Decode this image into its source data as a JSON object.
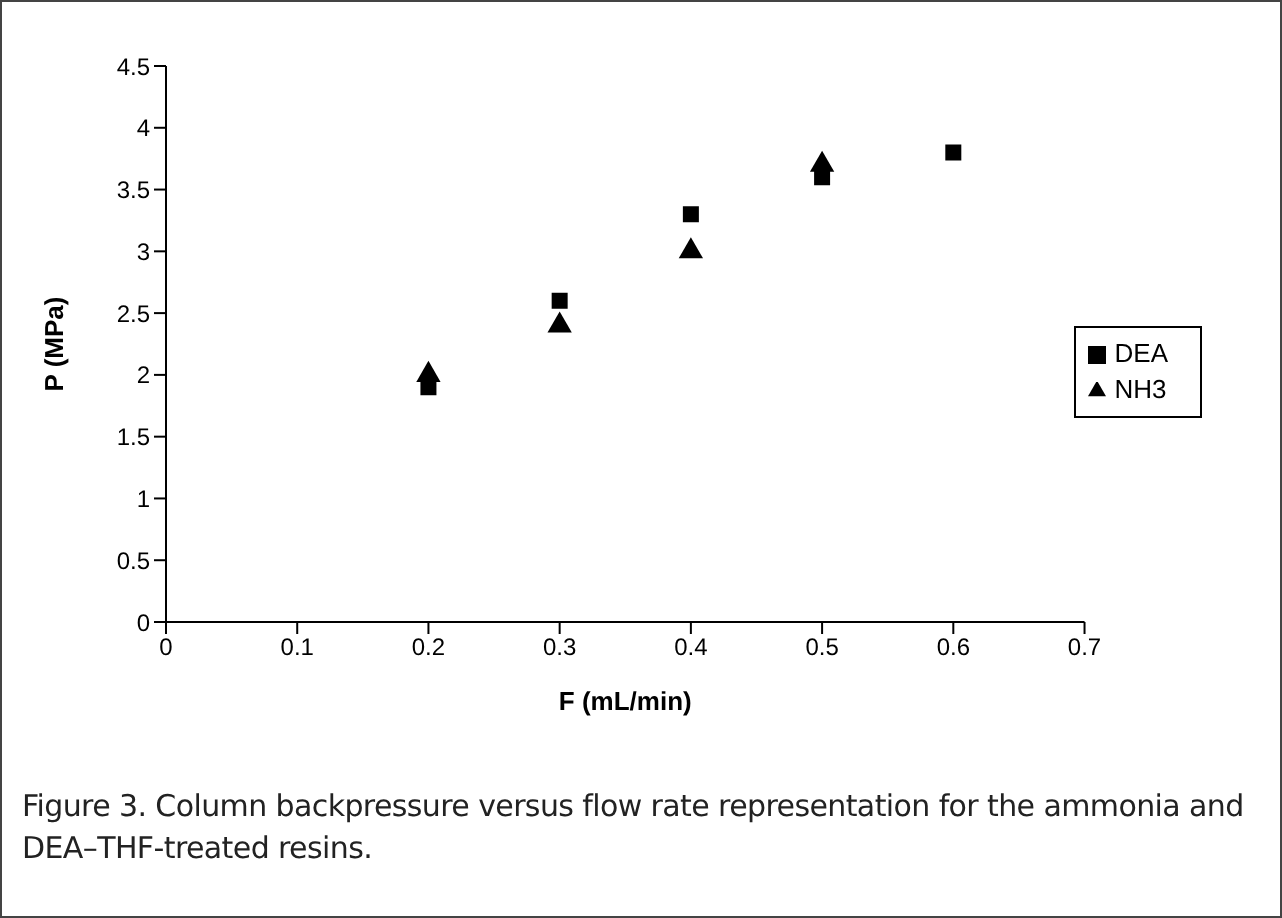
{
  "chart_data": {
    "type": "scatter",
    "xlabel": "F (mL/min)",
    "ylabel": "P (MPa)",
    "xlim": [
      0,
      0.7
    ],
    "xticks": [
      0,
      0.1,
      0.2,
      0.3,
      0.4,
      0.5,
      0.6,
      0.7
    ],
    "ylim": [
      0,
      4.5
    ],
    "yticks": [
      0,
      0.5,
      1,
      1.5,
      2,
      2.5,
      3,
      3.5,
      4,
      4.5
    ],
    "grid": false,
    "legend": "right",
    "series": [
      {
        "name": "NH3",
        "color": "#000000",
        "marker": "triangle",
        "x": [
          0.2,
          0.3,
          0.4,
          0.5
        ],
        "values": [
          2.0,
          2.4,
          3.0,
          3.7
        ]
      },
      {
        "name": "DEA",
        "color": "#000000",
        "marker": "square",
        "x": [
          0.2,
          0.3,
          0.4,
          0.5,
          0.6
        ],
        "values": [
          1.9,
          2.6,
          3.3,
          3.6,
          3.8
        ]
      }
    ],
    "annotations": [
      "Figure 3. Column backpressure versus flow rate representation for the ammonia and DEA–THF-treated resins."
    ]
  }
}
